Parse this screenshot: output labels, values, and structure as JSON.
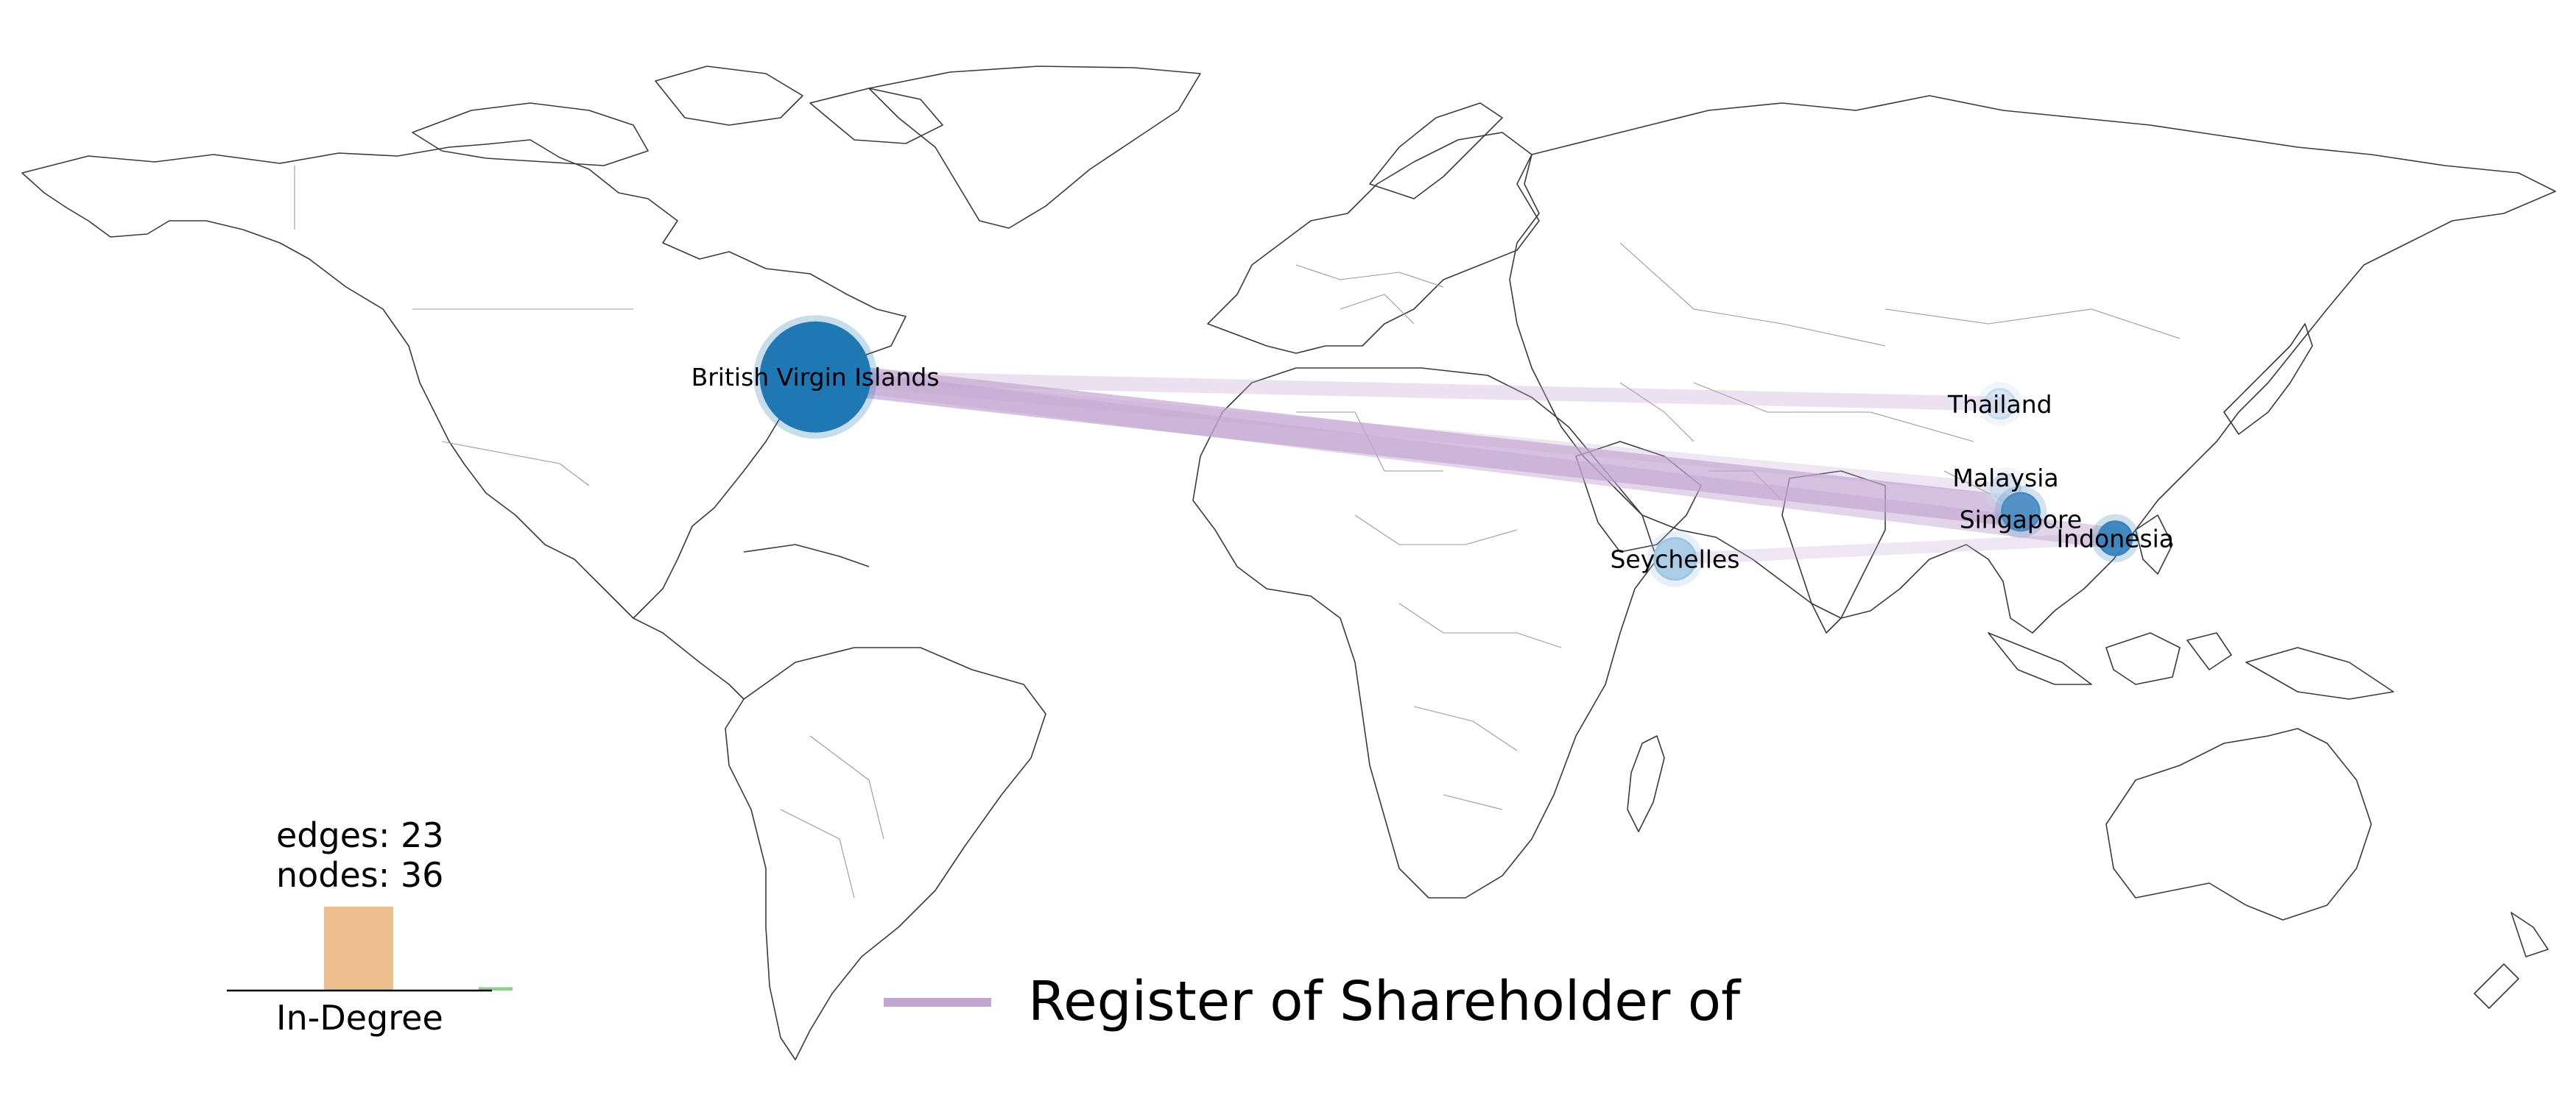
{
  "map": {
    "projection": "equirectangular",
    "nodes": [
      {
        "id": "bvi",
        "label": "British Virgin Islands",
        "lon": -64.6,
        "lat": 18.4,
        "color": "#1f77b4",
        "fill_opacity": 1.0,
        "in_degree": 20
      },
      {
        "id": "thailand",
        "label": "Thailand",
        "lon": 100.9,
        "lat": 15.0,
        "color": "#c6dbef",
        "fill_opacity": 0.6,
        "in_degree": 0
      },
      {
        "id": "malaysia",
        "label": "Malaysia",
        "lon": 101.7,
        "lat": 4.2,
        "color": "#c6dbef",
        "fill_opacity": 0.6,
        "in_degree": 0
      },
      {
        "id": "singapore",
        "label": "Singapore",
        "lon": 103.8,
        "lat": 1.35,
        "color": "#4a8cc2",
        "fill_opacity": 0.9,
        "in_degree": 2
      },
      {
        "id": "indonesia",
        "label": "Indonesia",
        "lon": 117.0,
        "lat": -2.0,
        "color": "#3b83bd",
        "fill_opacity": 0.95,
        "in_degree": 1
      },
      {
        "id": "seychelles",
        "label": "Seychelles",
        "lon": 55.5,
        "lat": -4.6,
        "color": "#9ec5e3",
        "fill_opacity": 0.8,
        "in_degree": 3
      }
    ],
    "edges": [
      {
        "from": "thailand",
        "to": "bvi",
        "weight": 3
      },
      {
        "from": "malaysia",
        "to": "bvi",
        "weight": 2
      },
      {
        "from": "singapore",
        "to": "bvi",
        "weight": 10
      },
      {
        "from": "indonesia",
        "to": "bvi",
        "weight": 6
      },
      {
        "from": "indonesia",
        "to": "seychelles",
        "weight": 2
      }
    ]
  },
  "stats": {
    "edges": "edges: 23",
    "nodes": "nodes: 36"
  },
  "histogram": {
    "xlabel": "In-Degree",
    "bars": [
      {
        "value": 1.0,
        "color": "#efbf92"
      },
      {
        "value": 0.0,
        "color": "#ffffff"
      },
      {
        "value": 0.04,
        "color": "#8fd08f"
      }
    ]
  },
  "legend": {
    "label": "Register of Shareholder of",
    "color": "#c2a5d1"
  }
}
